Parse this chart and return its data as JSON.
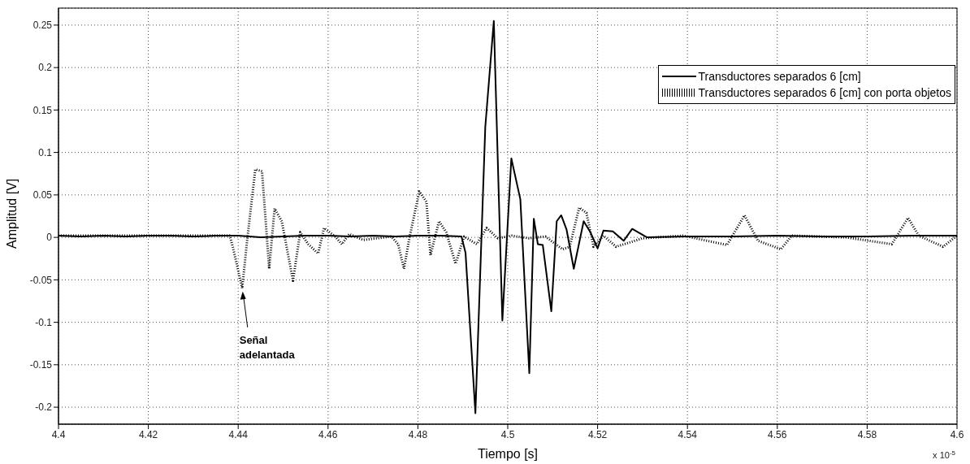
{
  "chart_data": {
    "type": "line",
    "xlabel": "Tiempo [s]",
    "ylabel": "Amplitud [V]",
    "xlim": [
      4.4,
      4.6
    ],
    "xticks": [
      4.4,
      4.42,
      4.44,
      4.46,
      4.48,
      4.5,
      4.52,
      4.54,
      4.56,
      4.58,
      4.6
    ],
    "ylim": [
      -0.22,
      0.27
    ],
    "yticks": [
      -0.2,
      -0.15,
      -0.1,
      -0.05,
      0,
      0.05,
      0.1,
      0.15,
      0.2,
      0.25
    ],
    "grid": true,
    "legend": "top right",
    "marker": "none",
    "annotations": [
      "Señal\nadelantada",
      "x 10$^{-5}$"
    ],
    "series": [
      {
        "name": "Transductores separados 6 [cm]",
        "color": "#000000",
        "line_style": "solid",
        "x": [
          4.4,
          4.405,
          4.41,
          4.415,
          4.42,
          4.425,
          4.43,
          4.435,
          4.44,
          4.445,
          4.45,
          4.455,
          4.46,
          4.465,
          4.47,
          4.475,
          4.48,
          4.485,
          4.4897,
          4.4906,
          4.4928,
          4.495,
          4.4969,
          4.4988,
          4.5008,
          4.5028,
          4.5048,
          4.5058,
          4.5067,
          4.5078,
          4.5097,
          4.5109,
          4.5119,
          4.5131,
          4.5147,
          4.5169,
          4.5184,
          4.52,
          4.5213,
          4.5234,
          4.5258,
          4.5277,
          4.531,
          4.54,
          4.55,
          4.56,
          4.57,
          4.58,
          4.59,
          4.6
        ],
        "values": [
          0.002,
          0.001,
          0.002,
          0.001,
          0.002,
          0.002,
          0.001,
          0.002,
          0.002,
          0,
          0.001,
          0.002,
          0.002,
          0.001,
          0.002,
          0.001,
          0.002,
          0.002,
          0.001,
          -0.018,
          -0.207,
          0.13,
          0.255,
          -0.098,
          0.093,
          0.045,
          -0.16,
          0.022,
          -0.008,
          -0.009,
          -0.087,
          0.019,
          0.026,
          0.009,
          -0.037,
          0.019,
          0.006,
          -0.013,
          0.008,
          0.007,
          -0.004,
          0.01,
          0,
          0.001,
          0.001,
          0.002,
          0.001,
          0.001,
          0.002,
          0.002
        ]
      },
      {
        "name": "Transductores separados 6 [cm] con porta objetos",
        "color": "#000000",
        "line_style": "dotted",
        "x": [
          4.4,
          4.41,
          4.42,
          4.43,
          4.4381,
          4.4388,
          4.4409,
          4.4419,
          4.4438,
          4.4453,
          4.4469,
          4.4481,
          4.4497,
          4.4522,
          4.4538,
          4.4556,
          4.4578,
          4.4591,
          4.4616,
          4.4631,
          4.4647,
          4.4678,
          4.4741,
          4.4756,
          4.4769,
          4.4781,
          4.4803,
          4.4819,
          4.4828,
          4.4847,
          4.4863,
          4.4884,
          4.4903,
          4.4931,
          4.4953,
          4.4978,
          4.5009,
          4.5047,
          4.5084,
          4.5122,
          4.5138,
          4.5159,
          4.5175,
          4.5191,
          4.5213,
          4.5241,
          4.5301,
          4.5391,
          4.5488,
          4.5527,
          4.5557,
          4.5608,
          4.5632,
          4.5753,
          4.5855,
          4.5891,
          4.5915,
          4.5969,
          4.6
        ],
        "values": [
          0.002,
          0.002,
          0.002,
          0.002,
          0.002,
          -0.011,
          -0.06,
          -0.008,
          0.08,
          0.078,
          -0.037,
          0.034,
          0.019,
          -0.051,
          0.006,
          -0.008,
          -0.019,
          0.011,
          0.001,
          -0.008,
          0.004,
          -0.003,
          0.001,
          -0.008,
          -0.037,
          -0.001,
          0.054,
          0.042,
          -0.021,
          0.019,
          0.006,
          -0.031,
          0.001,
          -0.008,
          0.011,
          -0.001,
          0.002,
          -0.001,
          0.001,
          -0.014,
          -0.011,
          0.035,
          0.029,
          -0.011,
          0.002,
          -0.011,
          -0.001,
          0.002,
          -0.009,
          0.026,
          -0.004,
          -0.014,
          0.002,
          0,
          -0.008,
          0.023,
          0.002,
          -0.011,
          0.002
        ]
      }
    ]
  }
}
